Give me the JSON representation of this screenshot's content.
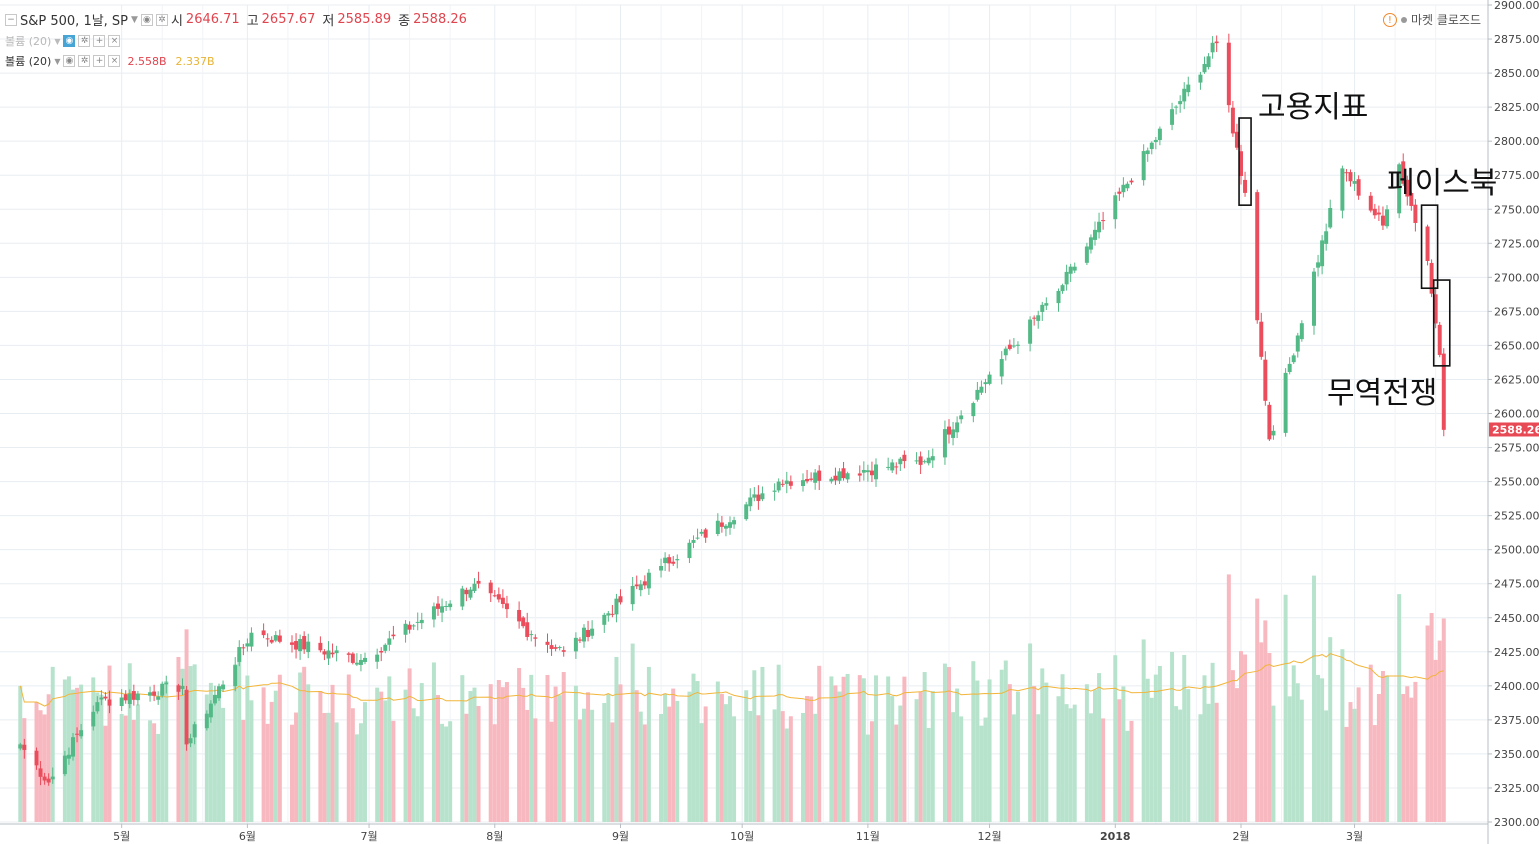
{
  "header": {
    "symbol": "S&P 500, 1날, SP",
    "open_label": "시",
    "open": "2646.71",
    "high_label": "고",
    "high": "2657.67",
    "low_label": "저",
    "low": "2585.89",
    "close_label": "종",
    "close": "2588.26",
    "status_text": "마켓 클로즈드"
  },
  "volume_legend_1": {
    "label": "볼륨 (20)"
  },
  "volume_legend_2": {
    "label": "볼륨 (20)",
    "volume": "2.558B",
    "ma": "2.337B"
  },
  "colors": {
    "up": "#53b987",
    "down": "#eb4d5c",
    "up_vol": "#b7e3cd",
    "down_vol": "#f7b8bf",
    "ma": "#f2b53a",
    "grid": "#e8edf2"
  },
  "annotations": [
    {
      "text": "고용지표"
    },
    {
      "text": "페이스북"
    },
    {
      "text": "무역전쟁"
    }
  ],
  "chart_data": {
    "type": "candlestick",
    "title": "S&P 500, 1날, SP",
    "ylim": [
      2300,
      2900
    ],
    "y_ticks": [
      "2300.00",
      "2325.00",
      "2350.00",
      "2375.00",
      "2400.00",
      "2425.00",
      "2450.00",
      "2475.00",
      "2500.00",
      "2525.00",
      "2550.00",
      "2575.00",
      "2600.00",
      "2625.00",
      "2650.00",
      "2675.00",
      "2700.00",
      "2725.00",
      "2750.00",
      "2775.00",
      "2800.00",
      "2825.00",
      "2850.00",
      "2875.00",
      "2900.00"
    ],
    "x_ticks": [
      "5월",
      "6월",
      "7월",
      "8월",
      "9월",
      "10월",
      "11월",
      "12월",
      "2018",
      "2월",
      "3월"
    ],
    "last_price": "2588.26",
    "volume_ma": "2.337B",
    "keypoints": [
      {
        "date": "2017-04-06",
        "close": 2357
      },
      {
        "date": "2017-04-13",
        "close": 2329
      },
      {
        "date": "2017-04-25",
        "close": 2388
      },
      {
        "date": "2017-05-16",
        "close": 2400
      },
      {
        "date": "2017-05-17",
        "close": 2357
      },
      {
        "date": "2017-06-02",
        "close": 2439
      },
      {
        "date": "2017-06-29",
        "close": 2419
      },
      {
        "date": "2017-07-27",
        "close": 2475
      },
      {
        "date": "2017-08-10",
        "close": 2438
      },
      {
        "date": "2017-08-18",
        "close": 2425
      },
      {
        "date": "2017-09-11",
        "close": 2488
      },
      {
        "date": "2017-10-10",
        "close": 2550
      },
      {
        "date": "2017-11-15",
        "close": 2565
      },
      {
        "date": "2017-12-04",
        "close": 2640
      },
      {
        "date": "2017-12-18",
        "close": 2690
      },
      {
        "date": "2018-01-26",
        "close": 2872
      },
      {
        "date": "2018-02-02",
        "close": 2762
      },
      {
        "date": "2018-02-08",
        "close": 2581
      },
      {
        "date": "2018-02-26",
        "close": 2780
      },
      {
        "date": "2018-03-08",
        "close": 2738
      },
      {
        "date": "2018-03-12",
        "close": 2783
      },
      {
        "date": "2018-03-19",
        "close": 2712
      },
      {
        "date": "2018-03-22",
        "close": 2643
      },
      {
        "date": "2018-03-23",
        "close": 2588
      }
    ]
  }
}
